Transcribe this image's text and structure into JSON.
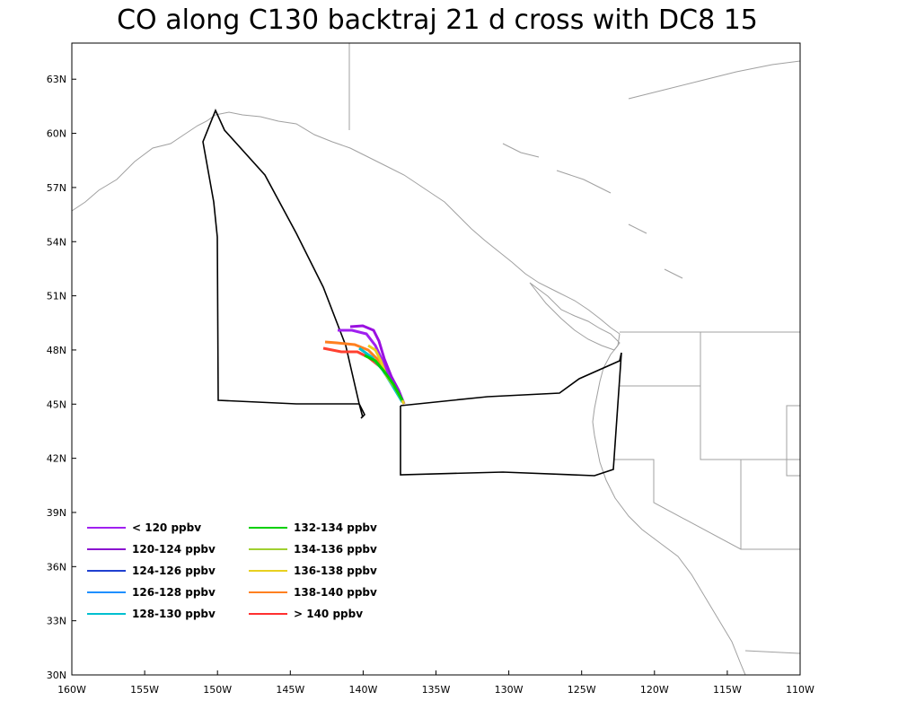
{
  "map": {
    "title": "CO along C130 backtraj 21 d cross with DC8 15",
    "x_ticks": [
      "160W",
      "155W",
      "150W",
      "145W",
      "140W",
      "135W",
      "130W",
      "125W",
      "120W",
      "115W",
      "110W"
    ],
    "y_ticks": [
      "30N",
      "33N",
      "36N",
      "39N",
      "42N",
      "45N",
      "48N",
      "51N",
      "54N",
      "57N",
      "60N",
      "63N"
    ],
    "legend": [
      {
        "label": "< 120 ppbv",
        "color": "#a020f0"
      },
      {
        "label": "120-124 ppbv",
        "color": "#8a10d0"
      },
      {
        "label": "124-126 ppbv",
        "color": "#2040d0"
      },
      {
        "label": "126-128 ppbv",
        "color": "#1e90ff"
      },
      {
        "label": "128-130 ppbv",
        "color": "#00c0d0"
      },
      {
        "label": "132-134 ppbv",
        "color": "#00d000"
      },
      {
        "label": "134-136 ppbv",
        "color": "#a0d030"
      },
      {
        "label": "136-138 ppbv",
        "color": "#e8d020"
      },
      {
        "label": "138-140 ppbv",
        "color": "#ff8020"
      },
      {
        "label": "> 140 ppbv",
        "color": "#ff3030"
      }
    ]
  }
}
